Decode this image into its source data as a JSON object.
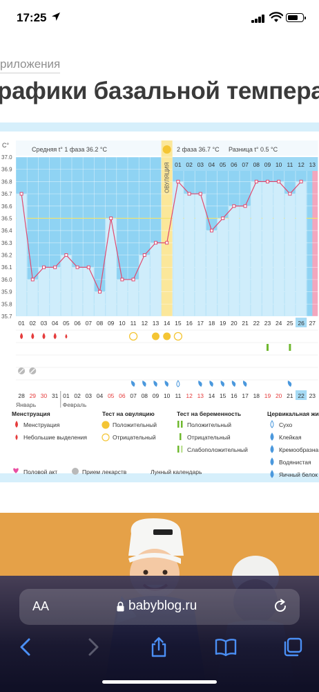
{
  "status_bar": {
    "time": "17:25"
  },
  "breadcrumb": "риложения",
  "headline": "рафики базальной температур",
  "colors": {
    "phase_bg": "#8fd3f3",
    "column_bg": "#cfedfb",
    "line": "#e0496f",
    "ovulation": "#fbe79a",
    "average_line": "#f4e36a",
    "period_drop": "#e53c3c",
    "test_positive": "#f4c534",
    "preg_test": "#6fb82e",
    "mucus": "#4a98dd",
    "weekend": "#e53c3c"
  },
  "chart_data": {
    "type": "line",
    "unit": "C°",
    "ylim": [
      35.7,
      37.0
    ],
    "yticks": [
      "37.0",
      "36.9",
      "36.8",
      "36.7",
      "36.6",
      "36.5",
      "36.4",
      "36.3",
      "36.2",
      "36.1",
      "36.0",
      "35.9",
      "35.8",
      "35.7"
    ],
    "phase1_label": "Средняя t° 1 фаза",
    "phase1_value": "36.2 °C",
    "phase2_label": "2 фаза",
    "phase2_value": "36.7 °C",
    "diff_label": "Разница t°",
    "diff_value": "0.5 °C",
    "ovulation_label": "ОВУЛЯЦИЯ",
    "cycle_days": [
      "01",
      "02",
      "03",
      "04",
      "05",
      "06",
      "07",
      "08",
      "09",
      "10",
      "11",
      "12",
      "13",
      "14",
      "15",
      "16",
      "17",
      "18",
      "19",
      "20",
      "21",
      "22",
      "23",
      "24",
      "25",
      "26",
      "27"
    ],
    "phase2_days": [
      "01",
      "02",
      "03",
      "04",
      "05",
      "06",
      "07",
      "08",
      "09",
      "10",
      "11",
      "12",
      "13"
    ],
    "values": [
      36.7,
      36.0,
      36.1,
      36.1,
      36.2,
      36.1,
      36.1,
      35.9,
      36.5,
      36.0,
      36.0,
      36.2,
      36.3,
      36.3,
      36.8,
      36.7,
      36.7,
      36.4,
      36.5,
      36.6,
      36.6,
      36.8,
      36.8,
      36.8,
      36.7,
      36.8,
      null
    ],
    "average_line_value": 36.5,
    "highlight_cycle_day": "26",
    "calendar_days": [
      "28",
      "29",
      "30",
      "31",
      "01",
      "02",
      "03",
      "04",
      "05",
      "06",
      "07",
      "08",
      "09",
      "10",
      "11",
      "12",
      "13",
      "14",
      "15",
      "16",
      "17",
      "18",
      "19",
      "20",
      "21",
      "22",
      "23"
    ],
    "weekend_days": [
      1,
      2,
      8,
      9,
      15,
      16,
      22,
      23
    ],
    "highlight_calendar_index": 25,
    "month_1": "Январь",
    "month_2": "Февраль",
    "menstruation_days": [
      0,
      1,
      2,
      3,
      4
    ],
    "menstruation_heavy": [
      true,
      true,
      true,
      true,
      false
    ],
    "ovulation_positive_days": [
      12,
      13
    ],
    "ovulation_negative_days": [
      10,
      14
    ],
    "pregnancy_test_days": [
      22,
      24
    ],
    "medicine_days": [
      0,
      1
    ],
    "mucus_days": [
      10,
      11,
      12,
      13,
      14,
      16,
      17,
      18,
      19,
      20,
      24
    ],
    "mucus_dry_days": [
      14
    ],
    "moon_day": 8
  },
  "legend": {
    "menstruation_title": "Менструация",
    "menstruation_items": [
      "Менструация",
      "Небольшие выделения"
    ],
    "ovulation_title": "Тест на овуляцию",
    "ovulation_items": [
      "Положительный",
      "Отрицательный"
    ],
    "pregnancy_title": "Тест на беременность",
    "pregnancy_items": [
      "Положительный",
      "Отрицательный",
      "Слабоположительный"
    ],
    "mucus_title": "Цервикальная жи",
    "mucus_items": [
      "Сухо",
      "Клейкая",
      "Кремообразна",
      "Водянистая",
      "Яичный белок"
    ],
    "extra_items": [
      "Половой акт",
      "Прием лекарств",
      "Лунный календарь"
    ]
  },
  "browser": {
    "aa_label": "AA",
    "host": "babyblog.ru"
  }
}
